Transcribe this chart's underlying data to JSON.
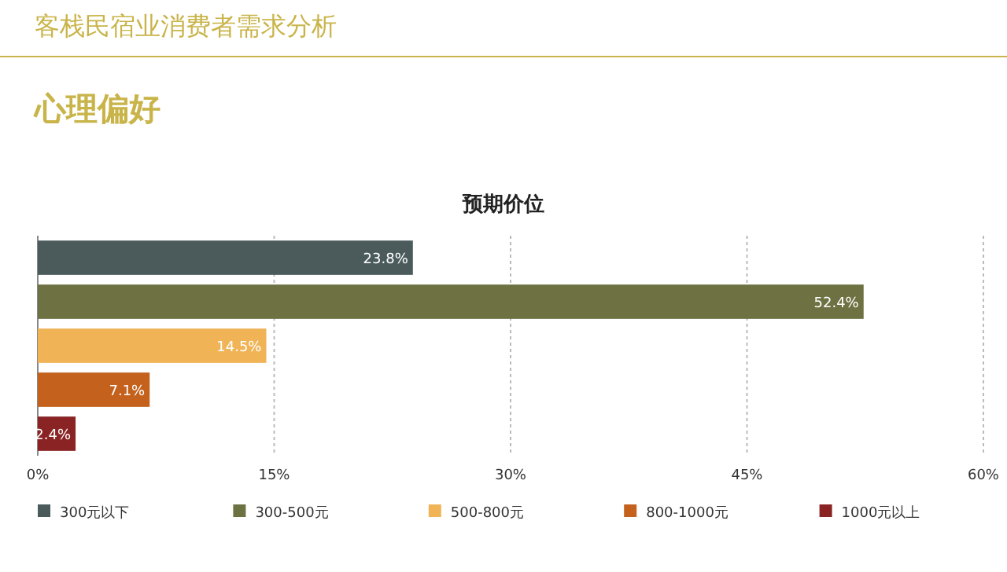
{
  "chart_data": {
    "type": "bar",
    "orientation": "horizontal",
    "title": "预期价位",
    "annotations": [
      "客栈民宿业消费者需求分析",
      "心理偏好"
    ],
    "categories": [
      null,
      null,
      null,
      null,
      null
    ],
    "series": [
      {
        "name": "300元以下",
        "color": "#4b5b5c",
        "values": [
          23.8,
          null,
          null,
          null,
          null
        ],
        "value_labels": [
          "23.8%",
          null,
          null,
          null,
          null
        ]
      },
      {
        "name": "300-500元",
        "color": "#6e7142",
        "values": [
          null,
          52.4,
          null,
          null,
          null
        ],
        "value_labels": [
          null,
          "52.4%",
          null,
          null,
          null
        ]
      },
      {
        "name": "500-800元",
        "color": "#f0b457",
        "values": [
          null,
          null,
          14.5,
          null,
          null
        ],
        "value_labels": [
          null,
          null,
          "14.5%",
          null,
          null
        ]
      },
      {
        "name": "800-1000元",
        "color": "#c4611c",
        "values": [
          null,
          null,
          null,
          7.1,
          null
        ],
        "value_labels": [
          null,
          null,
          null,
          "7.1%",
          null
        ]
      },
      {
        "name": "1000元以上",
        "color": "#8a2424",
        "values": [
          null,
          null,
          null,
          null,
          2.4
        ],
        "value_labels": [
          null,
          null,
          null,
          null,
          "2.4%"
        ]
      }
    ],
    "xlim": [
      0,
      60
    ],
    "xticks": [
      {
        "value": 0,
        "label": "0%"
      },
      {
        "value": 15,
        "label": "15%"
      },
      {
        "value": 30,
        "label": "30%"
      },
      {
        "value": 45,
        "label": "45%"
      },
      {
        "value": 60,
        "label": "60%"
      }
    ],
    "grid": "x",
    "legend": "bottom"
  }
}
